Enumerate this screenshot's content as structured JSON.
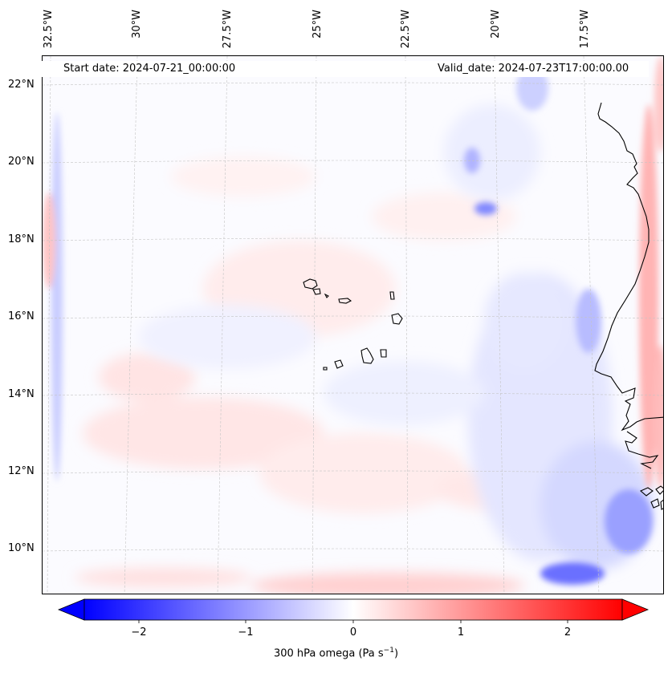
{
  "map": {
    "start_date": "Start date: 2024-07-21_00:00:00",
    "valid_date": "Valid_date: 2024-07-23T17:00:00.00",
    "lon_labels": [
      "32.5°W",
      "30°W",
      "27.5°W",
      "25°W",
      "22.5°W",
      "20°W",
      "17.5°W"
    ],
    "lat_labels": [
      "22°N",
      "20°N",
      "18°N",
      "16°N",
      "14°N",
      "12°N",
      "10°N"
    ],
    "colors": {
      "negative": "#0000ff",
      "positive": "#ff0000",
      "neutral": "#ffffff",
      "coastline": "#000000",
      "gridline": "#b8b8b8"
    }
  },
  "colorbar": {
    "ticks": [
      "−2",
      "−1",
      "0",
      "1",
      "2"
    ],
    "range": [
      -2.7,
      2.7
    ],
    "label": "300 hPa omega (Pa s",
    "label_sup": "−1",
    "label_end": ")"
  }
}
